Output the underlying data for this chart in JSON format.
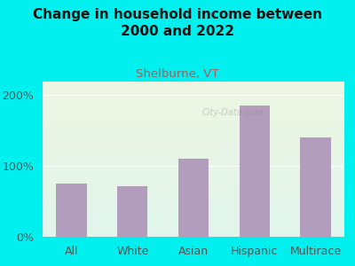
{
  "title": "Change in household income between\n2000 and 2022",
  "subtitle": "Shelburne, VT",
  "categories": [
    "All",
    "White",
    "Asian",
    "Hispanic",
    "Multirace"
  ],
  "values": [
    75,
    72,
    110,
    185,
    140
  ],
  "bar_color": "#b39dbd",
  "background_outer": "#00EFEF",
  "background_plot_grad_top": "#edf5e1",
  "background_plot_grad_bottom": "#e0f5ec",
  "title_fontsize": 11,
  "subtitle_fontsize": 9.5,
  "subtitle_color": "#a06060",
  "tick_label_fontsize": 9,
  "ylim": [
    0,
    220
  ],
  "yticks": [
    0,
    100,
    200
  ],
  "ytick_labels": [
    "0%",
    "100%",
    "200%"
  ],
  "watermark": "City-Data.com"
}
